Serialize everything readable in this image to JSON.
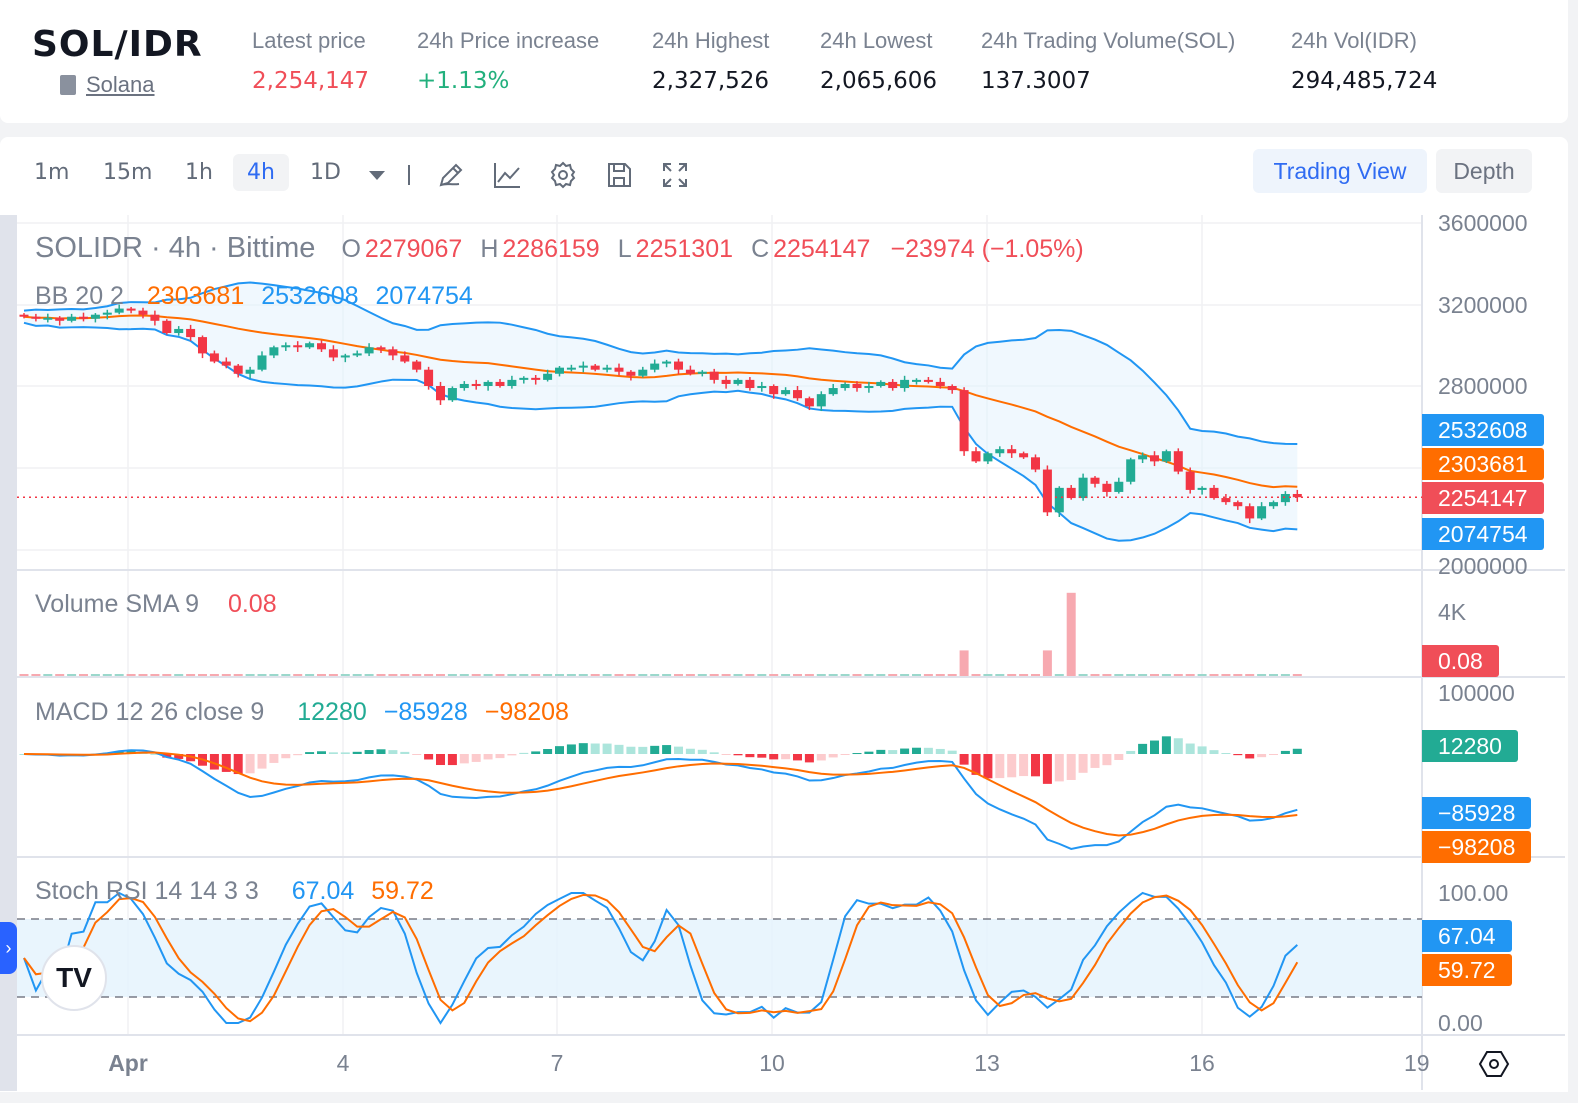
{
  "header": {
    "pair": "SOL/IDR",
    "coin_name": "Solana",
    "stats": [
      {
        "label": "Latest price",
        "value": "2,254,147",
        "color": "#f04e58"
      },
      {
        "label": "24h Price increase",
        "value": "+1.13%",
        "color": "#22b07d"
      },
      {
        "label": "24h Highest",
        "value": "2,327,526"
      },
      {
        "label": "24h Lowest",
        "value": "2,065,606"
      },
      {
        "label": "24h Trading Volume(SOL)",
        "value": "137.3007"
      },
      {
        "label": "24h Vol(IDR)",
        "value": "294,485,724"
      }
    ]
  },
  "toolbar": {
    "intervals": [
      "1m",
      "15m",
      "1h",
      "4h",
      "1D"
    ],
    "active_interval": "4h",
    "tools": [
      "pencil-icon",
      "line-chart-icon",
      "gear-icon",
      "save-icon",
      "fullscreen-icon"
    ],
    "trading_view_label": "Trading View",
    "depth_label": "Depth"
  },
  "legend": {
    "symbol": "SOLIDR · 4h · Bittime",
    "o_label": "O",
    "o": "2279067",
    "h_label": "H",
    "h": "2286159",
    "l_label": "L",
    "l": "2251301",
    "c_label": "C",
    "c": "2254147",
    "change": "−23974 (−1.05%)",
    "bb_label": "BB 20 2",
    "bb_basis": "2303681",
    "bb_upper": "2532608",
    "bb_lower": "2074754",
    "vol_label": "Volume SMA 9",
    "vol_value": "0.08",
    "macd_label": "MACD 12 26 close 9",
    "macd_hist": "12280",
    "macd_line": "−85928",
    "macd_signal": "−98208",
    "stoch_label": "Stoch RSI 14 14 3 3",
    "stoch_k": "67.04",
    "stoch_d": "59.72"
  },
  "axis": {
    "price_ticks": [
      "3600000",
      "3200000",
      "2800000",
      "2000000"
    ],
    "volume_tick": "4K",
    "macd_tick": "100000",
    "stoch_ticks": [
      "100.00",
      "0.00"
    ],
    "time_labels": [
      "Apr",
      "4",
      "7",
      "10",
      "13",
      "16",
      "19"
    ],
    "tags": {
      "bb_upper": "2532608",
      "bb_basis": "2303681",
      "last": "2254147",
      "bb_lower": "2074754",
      "volume": "0.08",
      "macd_hist": "12280",
      "macd_line": "−85928",
      "macd_signal": "−98208",
      "stoch_k": "67.04",
      "stoch_d": "59.72"
    }
  },
  "colors": {
    "up": "#22ab94",
    "down": "#f23645",
    "bb": "#2196f3",
    "basis": "#ff6d00",
    "macd": "#2196f3",
    "signal": "#ff6d00"
  },
  "chart_data": {
    "type": "candlestick",
    "interval": "4h",
    "closes": [
      3140000,
      3130000,
      3135000,
      3120000,
      3140000,
      3130000,
      3150000,
      3160000,
      3180000,
      3170000,
      3150000,
      3120000,
      3060000,
      3080000,
      3040000,
      2960000,
      2920000,
      2900000,
      2860000,
      2880000,
      2950000,
      2990000,
      3000000,
      2990000,
      3010000,
      2980000,
      2940000,
      2950000,
      2960000,
      2990000,
      2980000,
      2950000,
      2920000,
      2880000,
      2800000,
      2730000,
      2790000,
      2810000,
      2800000,
      2820000,
      2800000,
      2830000,
      2840000,
      2830000,
      2860000,
      2890000,
      2890000,
      2900000,
      2880000,
      2890000,
      2870000,
      2850000,
      2880000,
      2910000,
      2920000,
      2880000,
      2860000,
      2870000,
      2830000,
      2810000,
      2830000,
      2790000,
      2800000,
      2760000,
      2780000,
      2740000,
      2700000,
      2760000,
      2790000,
      2810000,
      2790000,
      2800000,
      2820000,
      2790000,
      2830000,
      2830000,
      2820000,
      2800000,
      2780000,
      2480000,
      2430000,
      2470000,
      2490000,
      2470000,
      2450000,
      2390000,
      2180000,
      2300000,
      2250000,
      2350000,
      2320000,
      2280000,
      2330000,
      2440000,
      2460000,
      2430000,
      2480000,
      2380000,
      2290000,
      2300000,
      2250000,
      2230000,
      2210000,
      2150000,
      2210000,
      2230000,
      2270000,
      2254147
    ],
    "volume_spikes": [
      {
        "index": 79,
        "value": 1600
      },
      {
        "index": 86,
        "value": 1600
      },
      {
        "index": 88,
        "value": 5200
      }
    ],
    "price_range": [
      1950000,
      3650000
    ],
    "stoch_bands": [
      20,
      80
    ]
  }
}
